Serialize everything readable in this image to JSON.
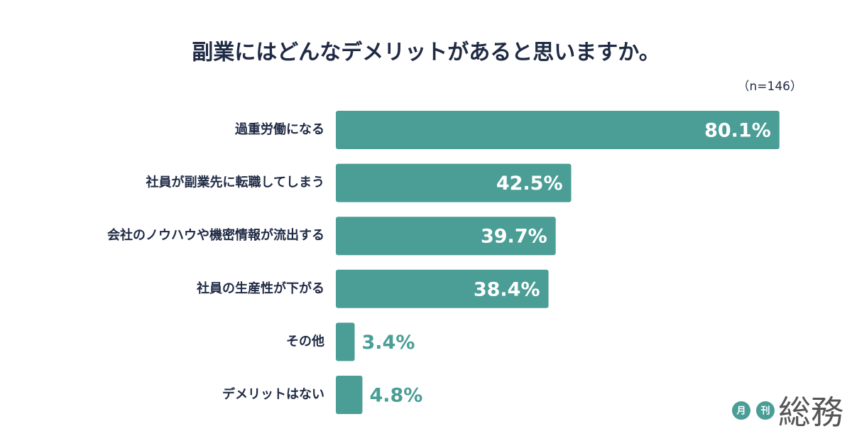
{
  "chart_data": {
    "type": "bar",
    "orientation": "horizontal",
    "title": "副業にはどんなデメリットがあると思いますか。",
    "subtitle": "（n=146）",
    "categories": [
      "過重労働になる",
      "社員が副業先に転職してしまう",
      "会社のノウハウや機密情報が流出する",
      "社員の生産性が下がる",
      "その他",
      "デメリットはない"
    ],
    "values": [
      80.1,
      42.5,
      39.7,
      38.4,
      3.4,
      4.8
    ],
    "value_labels": [
      "80.1%",
      "42.5%",
      "39.7%",
      "38.4%",
      "3.4%",
      "4.8%"
    ],
    "color": "#4a9e96",
    "xlim": [
      0,
      100
    ],
    "logo_marks": [
      "月",
      "刊"
    ],
    "logo_text": "総務"
  }
}
